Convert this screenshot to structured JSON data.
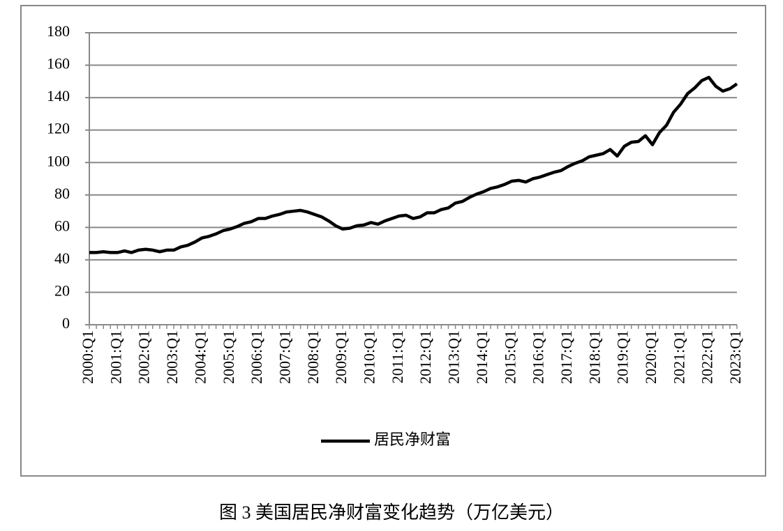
{
  "chart_data": {
    "type": "line",
    "title": "图 3  美国居民净财富变化趋势（万亿美元）",
    "categories": [
      "2000:Q1",
      null,
      null,
      null,
      "2001:Q1",
      null,
      null,
      null,
      "2002:Q1",
      null,
      null,
      null,
      "2003:Q1",
      null,
      null,
      null,
      "2004:Q1",
      null,
      null,
      null,
      "2005:Q1",
      null,
      null,
      null,
      "2006:Q1",
      null,
      null,
      null,
      "2007:Q1",
      null,
      null,
      null,
      "2008:Q1",
      null,
      null,
      null,
      "2009:Q1",
      null,
      null,
      null,
      "2010:Q1",
      null,
      null,
      null,
      "2011:Q1",
      null,
      null,
      null,
      "2012:Q1",
      null,
      null,
      null,
      "2013:Q1",
      null,
      null,
      null,
      "2014:Q1",
      null,
      null,
      null,
      "2015:Q1",
      null,
      null,
      null,
      "2016:Q1",
      null,
      null,
      null,
      "2017:Q1",
      null,
      null,
      null,
      "2018:Q1",
      null,
      null,
      null,
      "2019:Q1",
      null,
      null,
      null,
      "2020:Q1",
      null,
      null,
      null,
      "2021:Q1",
      null,
      null,
      null,
      "2022:Q1",
      null,
      null,
      null,
      "2023:Q1"
    ],
    "series": [
      {
        "name": "居民净财富",
        "color": "#000000",
        "values": [
          44.5,
          44.5,
          45,
          44.5,
          44.5,
          45.5,
          44.5,
          46,
          46.5,
          46,
          45,
          46,
          46,
          48,
          49,
          51,
          53.5,
          54.5,
          56,
          58,
          59,
          60.5,
          62.5,
          63.5,
          65.5,
          65.5,
          67,
          68,
          69.5,
          70,
          70.5,
          69.5,
          68,
          66.5,
          64,
          61,
          59,
          59.5,
          61,
          61.5,
          63,
          62,
          64,
          65.5,
          67,
          67.5,
          65.5,
          66.5,
          69,
          69,
          71,
          72,
          75,
          76,
          78.5,
          80.5,
          82,
          84,
          85,
          86.5,
          88.5,
          89,
          88,
          90,
          91,
          92.5,
          94,
          95,
          97.5,
          99.5,
          101,
          103.5,
          104.5,
          105.5,
          108,
          104,
          110,
          112.5,
          113,
          116.5,
          111,
          118.5,
          123,
          131,
          136,
          142.5,
          146,
          150.5,
          152.5,
          147,
          144,
          145.5,
          148.5
        ]
      }
    ],
    "ylim": [
      0,
      180
    ],
    "yticks": [
      0,
      20,
      40,
      60,
      80,
      100,
      120,
      140,
      160,
      180
    ],
    "grid": true,
    "legend": "bottom"
  }
}
